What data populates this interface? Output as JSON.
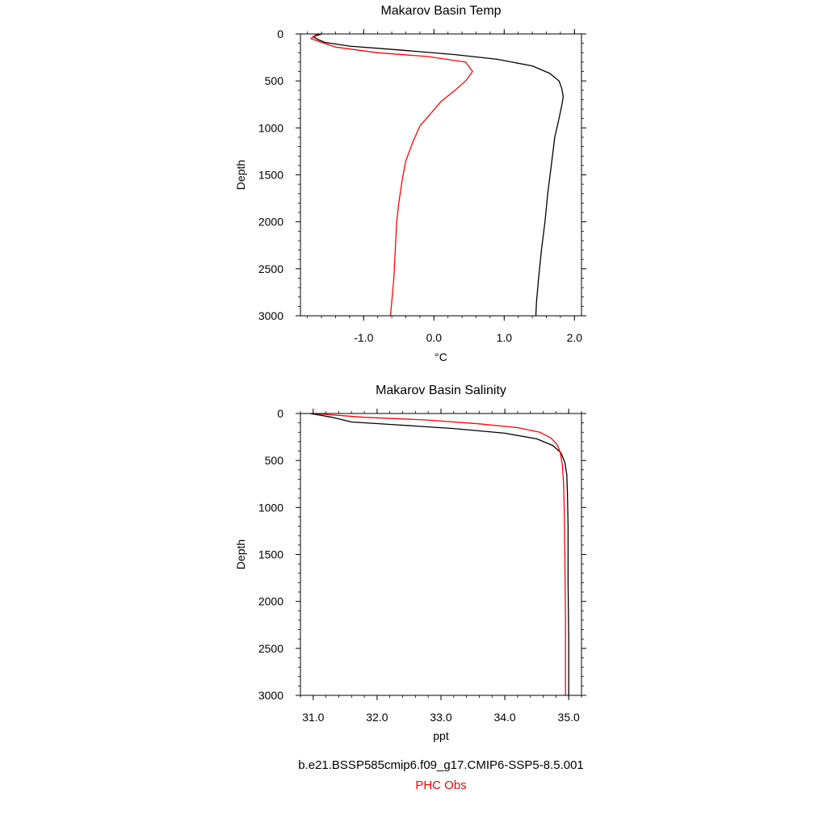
{
  "chart_data": [
    {
      "type": "line",
      "title": "Makarov Basin Temp",
      "xlabel": "°C",
      "ylabel": "Depth",
      "xlim": [
        -1.9,
        2.1
      ],
      "ylim": [
        3000,
        0
      ],
      "xticks": [
        "-1.0",
        "0.0",
        "1.0",
        "2.0"
      ],
      "xtick_values": [
        -1.0,
        0.0,
        1.0,
        2.0
      ],
      "yticks": [
        "0",
        "500",
        "1000",
        "1500",
        "2000",
        "2500",
        "3000"
      ],
      "ytick_values": [
        0,
        500,
        1000,
        1500,
        2000,
        2500,
        3000
      ],
      "grid": false,
      "series": [
        {
          "name": "b.e21.BSSP585cmip6.f09_g17.CMIP6-SSP5-8.5.001",
          "color": "#000000",
          "x": [
            -1.6,
            -1.72,
            -1.65,
            -1.55,
            -1.2,
            -0.5,
            0.3,
            0.9,
            1.4,
            1.65,
            1.78,
            1.82,
            1.84,
            1.82,
            1.78,
            1.72,
            1.67,
            1.62,
            1.58,
            1.53,
            1.49,
            1.46,
            1.45
          ],
          "y": [
            0,
            30,
            60,
            90,
            130,
            170,
            220,
            270,
            340,
            420,
            500,
            580,
            670,
            760,
            900,
            1100,
            1400,
            1700,
            2000,
            2300,
            2600,
            2850,
            3000
          ]
        },
        {
          "name": "PHC Obs",
          "color": "#ff0000",
          "x": [
            -1.65,
            -1.7,
            -1.75,
            -1.6,
            -1.4,
            -0.8,
            -0.1,
            0.45,
            0.55,
            0.45,
            0.3,
            0.1,
            -0.05,
            -0.2,
            -0.3,
            -0.4,
            -0.45,
            -0.5,
            -0.53,
            -0.55,
            -0.57,
            -0.6,
            -0.62
          ],
          "y": [
            0,
            20,
            50,
            90,
            140,
            200,
            240,
            300,
            400,
            500,
            600,
            720,
            850,
            980,
            1150,
            1350,
            1550,
            1800,
            2000,
            2300,
            2600,
            2850,
            3000
          ]
        }
      ]
    },
    {
      "type": "line",
      "title": "Makarov Basin Salinity",
      "xlabel": "ppt",
      "ylabel": "Depth",
      "xlim": [
        30.8,
        35.2
      ],
      "ylim": [
        3000,
        0
      ],
      "xticks": [
        "31.0",
        "32.0",
        "33.0",
        "34.0",
        "35.0"
      ],
      "xtick_values": [
        31.0,
        32.0,
        33.0,
        34.0,
        35.0
      ],
      "yticks": [
        "0",
        "500",
        "1000",
        "1500",
        "2000",
        "2500",
        "3000"
      ],
      "ytick_values": [
        0,
        500,
        1000,
        1500,
        2000,
        2500,
        3000
      ],
      "grid": false,
      "series": [
        {
          "name": "b.e21.BSSP585cmip6.f09_g17.CMIP6-SSP5-8.5.001",
          "color": "#000000",
          "x": [
            30.95,
            31.3,
            31.6,
            32.3,
            33.2,
            34.0,
            34.5,
            34.75,
            34.88,
            34.94,
            34.97,
            34.98,
            34.99,
            34.99,
            35.0,
            35.0
          ],
          "y": [
            0,
            40,
            90,
            120,
            160,
            210,
            270,
            340,
            420,
            520,
            650,
            850,
            1200,
            1800,
            2400,
            3000
          ]
        },
        {
          "name": "PHC Obs",
          "color": "#ff0000",
          "x": [
            31.0,
            31.8,
            32.8,
            33.6,
            34.2,
            34.55,
            34.72,
            34.82,
            34.87,
            34.9,
            34.92,
            34.93,
            34.94,
            34.95,
            34.95
          ],
          "y": [
            0,
            40,
            70,
            110,
            150,
            200,
            260,
            330,
            420,
            550,
            750,
            1000,
            1500,
            2200,
            3000
          ]
        }
      ]
    }
  ],
  "legend": {
    "items": [
      {
        "label": "b.e21.BSSP585cmip6.f09_g17.CMIP6-SSP5-8.5.001",
        "color": "#000000"
      },
      {
        "label": "PHC Obs",
        "color": "#ff0000"
      }
    ]
  }
}
